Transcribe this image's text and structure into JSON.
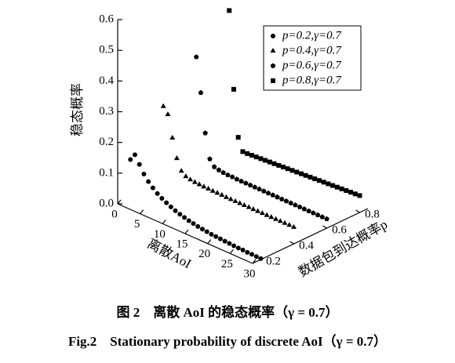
{
  "chart_data": {
    "type": "scatter3d",
    "xlabel": "离散AoI",
    "ylabel": "稳态概率",
    "plabel": "数据包到达概率p",
    "caption_cn": "图 2　离散 AoI 的稳态概率（γ = 0.7）",
    "caption_en": "Fig.2　Stationary probability of discrete AoI（γ = 0.7）",
    "xlim": [
      0,
      30
    ],
    "xticks": [
      0,
      5,
      10,
      15,
      20,
      25,
      30
    ],
    "ylim": [
      0,
      0.6
    ],
    "yticks": [
      {
        "value": 0,
        "label": "0.0"
      },
      0.1,
      0.2,
      0.3,
      0.4,
      0.5,
      0.6
    ],
    "plim": [
      0.15,
      0.85
    ],
    "pticks": [
      0.2,
      0.4,
      0.6,
      0.8
    ],
    "x": [
      1,
      2,
      3,
      4,
      5,
      6,
      7,
      8,
      9,
      10,
      11,
      12,
      13,
      14,
      15,
      16,
      17,
      18,
      19,
      20,
      21,
      22,
      23,
      24,
      25,
      26,
      27,
      28,
      29,
      30
    ],
    "legend": "upper right",
    "series": [
      {
        "name": "p=0.2,γ=0.7",
        "p": 0.2,
        "marker": "circle",
        "color": "#000",
        "values": [
          0.138,
          0.16,
          0.135,
          0.11,
          0.092,
          0.078,
          0.066,
          0.057,
          0.049,
          0.042,
          0.036,
          0.031,
          0.027,
          0.023,
          0.02,
          0.017,
          0.015,
          0.013,
          0.011,
          0.01,
          0.009,
          0.008,
          0.007,
          0.006,
          0.005,
          0.005,
          0.004,
          0.004,
          0.003,
          0.003
        ]
      },
      {
        "name": "p=0.4,γ=0.7",
        "p": 0.4,
        "marker": "triangle",
        "color": "#000",
        "values": [
          0.26,
          0.24,
          0.17,
          0.11,
          0.075,
          0.064,
          0.06,
          0.058,
          0.057,
          0.056,
          0.056,
          0.055,
          0.055,
          0.055,
          0.054,
          0.054,
          0.054,
          0.054,
          0.054,
          0.054,
          0.054,
          0.054,
          0.054,
          0.054,
          0.054,
          0.054,
          0.054,
          0.054,
          0.054,
          0.054
        ]
      },
      {
        "name": "p=0.6,γ=0.7",
        "p": 0.6,
        "marker": "pentagon",
        "color": "#000",
        "values": [
          0.37,
          0.26,
          0.135,
          0.057,
          0.038,
          0.034,
          0.032,
          0.031,
          0.031,
          0.03,
          0.03,
          0.03,
          0.03,
          0.03,
          0.03,
          0.03,
          0.03,
          0.03,
          0.03,
          0.03,
          0.03,
          0.03,
          0.03,
          0.03,
          0.03,
          0.03,
          0.03,
          0.03,
          0.03,
          0.03
        ]
      },
      {
        "name": "p=0.8,γ=0.7",
        "p": 0.8,
        "marker": "square",
        "color": "#000",
        "values": [
          0.47,
          0.22,
          0.07,
          0.03,
          0.03,
          0.031,
          0.032,
          0.033,
          0.034,
          0.035,
          0.036,
          0.037,
          0.038,
          0.039,
          0.04,
          0.041,
          0.042,
          0.043,
          0.044,
          0.045,
          0.046,
          0.047,
          0.048,
          0.049,
          0.05,
          0.051,
          0.052,
          0.053,
          0.054,
          0.055
        ]
      }
    ]
  }
}
